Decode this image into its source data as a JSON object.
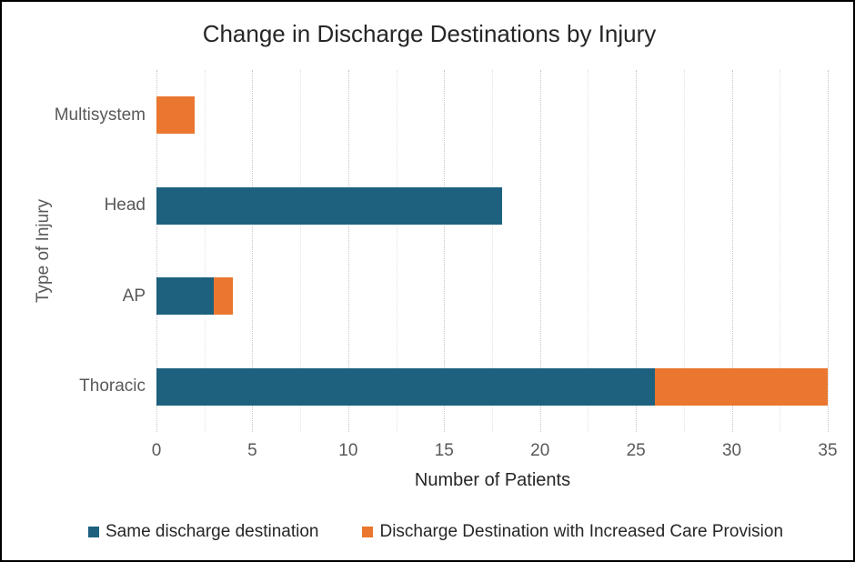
{
  "title": "Change in Discharge Destinations by Injury",
  "axes": {
    "x_label": "Number of Patients",
    "y_label": "Type of Injury",
    "x_tick_labels": [
      "0",
      "5",
      "10",
      "15",
      "20",
      "25",
      "30",
      "35"
    ]
  },
  "legend": {
    "items": [
      {
        "label": "Same discharge destination",
        "color": "#1D617F"
      },
      {
        "label": "Discharge Destination with Increased Care Provision",
        "color": "#EA762F"
      }
    ]
  },
  "chart_data": {
    "type": "bar",
    "orientation": "horizontal",
    "stacked": true,
    "title": "Change in Discharge Destinations by Injury",
    "xlabel": "Number of Patients",
    "ylabel": "Type of Injury",
    "categories_top_to_bottom": [
      "Multisystem",
      "Head",
      "AP",
      "Thoracic"
    ],
    "series": [
      {
        "name": "Same discharge destination",
        "color": "#1D617F",
        "values": [
          0,
          18,
          3,
          26
        ]
      },
      {
        "name": "Discharge Destination with Increased Care Provision",
        "color": "#EA762F",
        "values": [
          2,
          0,
          1,
          9
        ]
      }
    ],
    "stack_totals": [
      2,
      18,
      4,
      35
    ],
    "xlim": [
      0,
      35
    ],
    "x_major_tick_step": 5,
    "x_minor_gridline_step": 2.5,
    "grid": "vertical dotted gridlines only, major every 5, minor every 2.5",
    "legend_position": "bottom"
  },
  "styles": {
    "major_gridline_color": "#C6C6C6",
    "minor_gridline_color": "#E3E3E3",
    "tick_label_color": "#595959",
    "category_label_color": "#595959",
    "title_color": "#262626",
    "x_title_color": "#262626",
    "y_title_color": "#595959",
    "background": "#FFFFFF",
    "frame_color": "#000000"
  }
}
